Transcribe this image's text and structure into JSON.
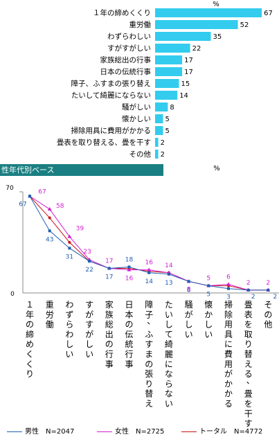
{
  "colors": {
    "bar": "#33ccee",
    "header_bg": "#1a7f82",
    "male": "#1e5fb4",
    "female": "#d21ed2",
    "total": "#cc1111"
  },
  "chart_data": [
    {
      "type": "bar",
      "orientation": "horizontal",
      "unit_label": "%",
      "categories": [
        "１年の締めくくり",
        "重労働",
        "わずらわしい",
        "すがすがしい",
        "家族総出の行事",
        "日本の伝統行事",
        "障子、ふすまの張り替え",
        "たいして綺麗にならない",
        "騒がしい",
        "懐かしい",
        "掃除用具に費用がかかる",
        "畳表を取り替える、畳を干す",
        "その他"
      ],
      "values": [
        67,
        52,
        35,
        22,
        17,
        17,
        15,
        14,
        8,
        5,
        5,
        2,
        2
      ]
    },
    {
      "type": "line",
      "title": "性年代別ベース",
      "unit_label": "%",
      "ylim": [
        0,
        70
      ],
      "y_ticks": [
        0,
        70
      ],
      "categories": [
        "１年の締めくくり",
        "重労働",
        "わずらわしい",
        "すがすがしい",
        "家族総出の行事",
        "日本の伝統行事",
        "障子、ふすまの張り替え",
        "たいして綺麗にならない",
        "騒がしい",
        "懐かしい",
        "掃除用具に費用がかかる",
        "畳表を取り替える、畳を干す",
        "その他"
      ],
      "series": [
        {
          "name": "男性　N=2047",
          "key": "male",
          "values": [
            67,
            43,
            31,
            22,
            17,
            18,
            14,
            13,
            8,
            5,
            3,
            2,
            2
          ]
        },
        {
          "name": "女性　N=2725",
          "key": "female",
          "values": [
            67,
            58,
            39,
            23,
            17,
            16,
            16,
            14,
            8,
            5,
            6,
            2,
            2
          ]
        },
        {
          "name": "トータル　N=4772",
          "key": "total",
          "values": [
            67,
            52,
            35,
            22,
            17,
            17,
            15,
            14,
            8,
            5,
            5,
            2,
            2
          ]
        }
      ]
    }
  ]
}
